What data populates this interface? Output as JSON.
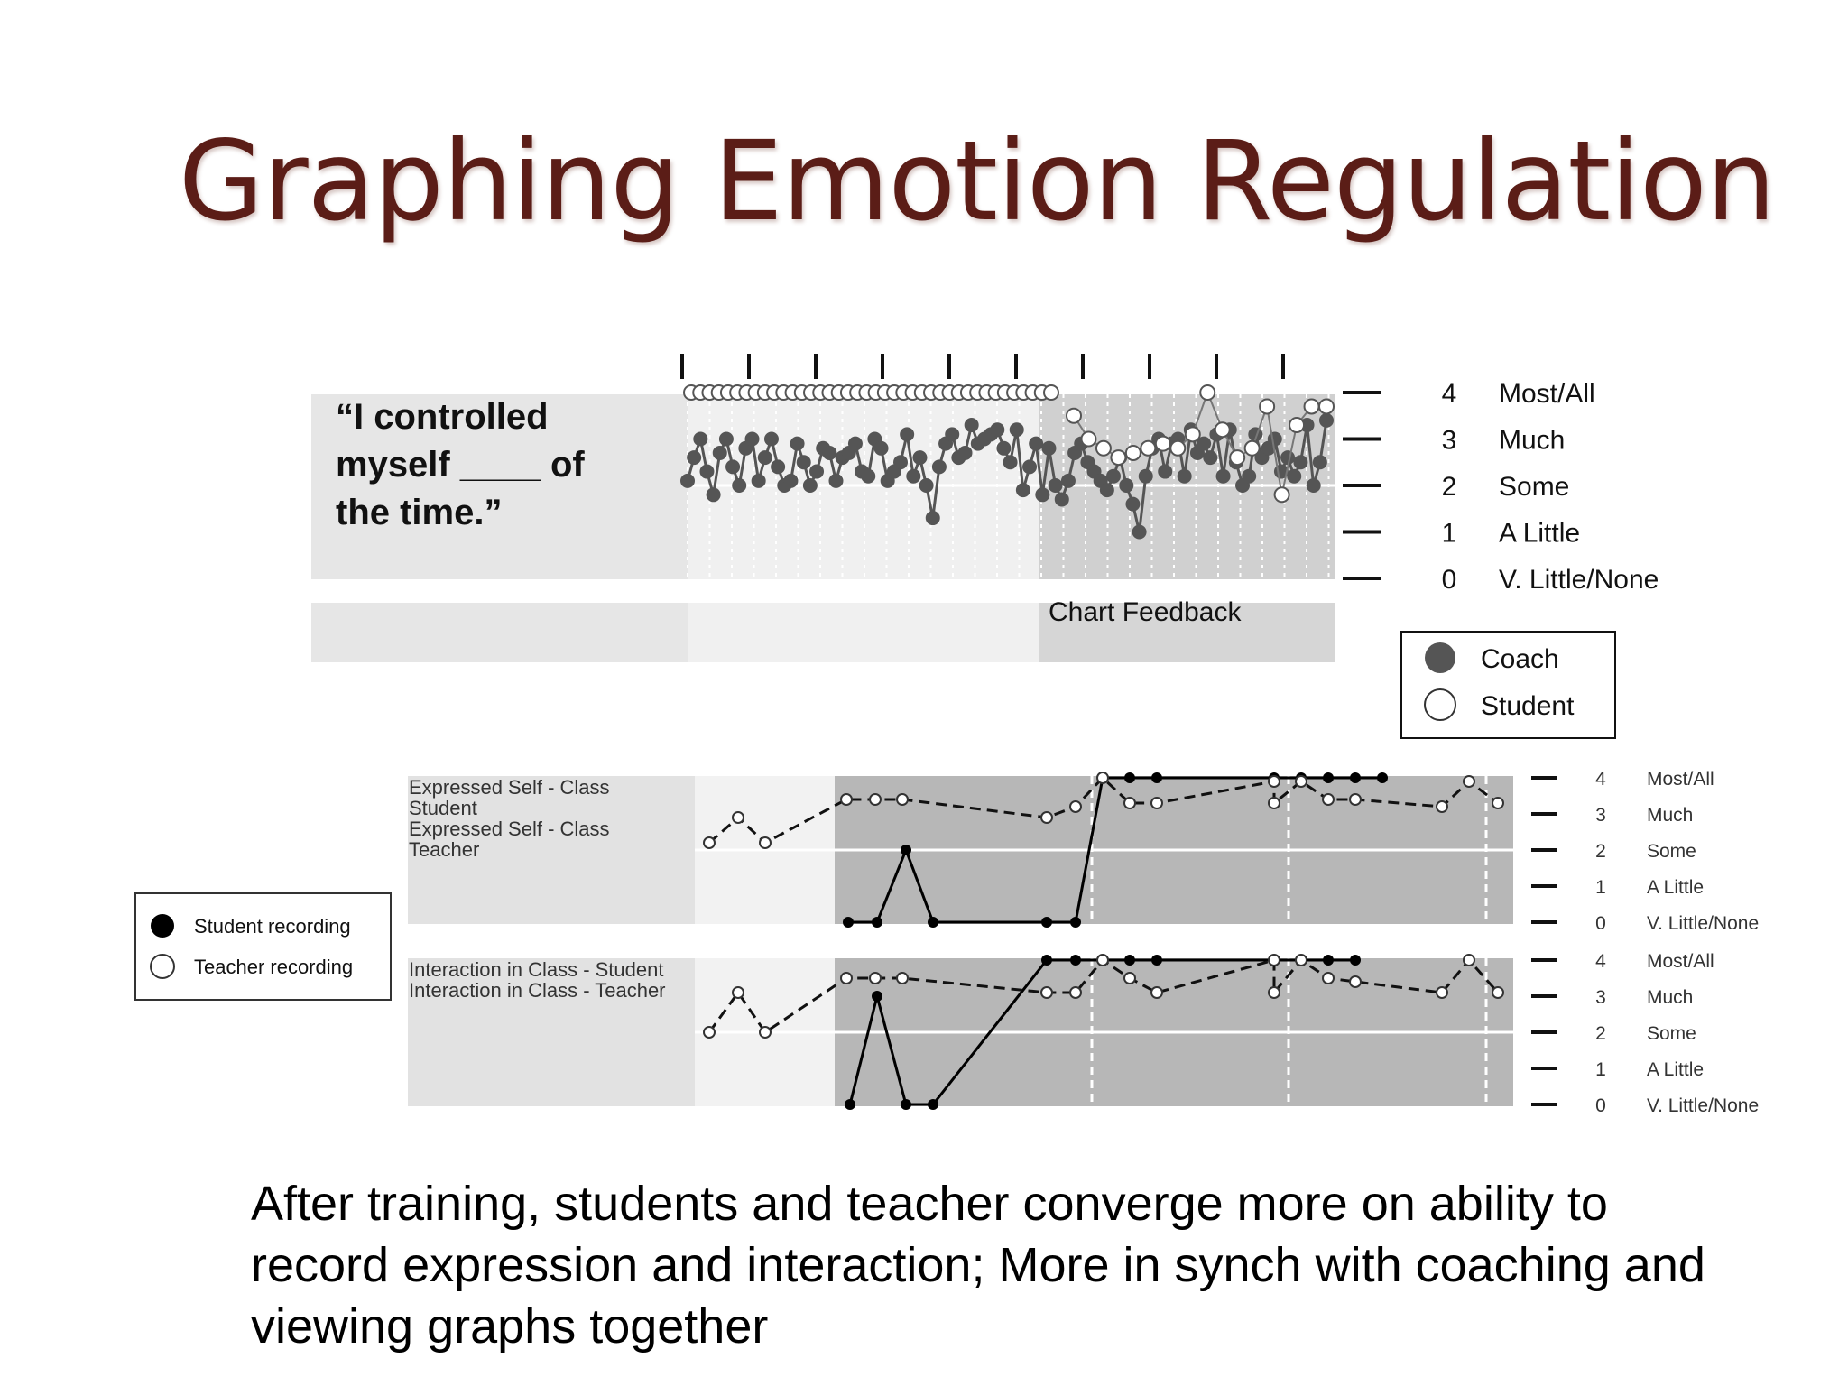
{
  "slide": {
    "title": "Graphing Emotion Regulation",
    "caption": "After training, students and teacher converge more on ability to record expression and interaction; More in synch with coaching and viewing graphs together"
  },
  "colors": {
    "title": "#5b1d17",
    "panel_light": "#e6e6e6",
    "panel_white": "#f4f4f4",
    "panel_dark": "#b7b7b7",
    "series_dark": "#555555"
  },
  "chart_data": [
    {
      "type": "line",
      "prompt": [
        "“I controlled",
        "myself ____ of",
        "the time.”"
      ],
      "phase_label": "Chart Feedback",
      "y_ticks": [
        {
          "value": 4,
          "label": "Most/All"
        },
        {
          "value": 3,
          "label": "Much"
        },
        {
          "value": 2,
          "label": "Some"
        },
        {
          "value": 1,
          "label": "A Little"
        },
        {
          "value": 0,
          "label": "V. Little/None"
        }
      ],
      "ylim": [
        0,
        4
      ],
      "legend": {
        "placement": "right",
        "entries": [
          "Coach",
          "Student"
        ]
      },
      "series": [
        {
          "name": "Coach",
          "values": [
            2.1,
            2.6,
            3.0,
            2.3,
            1.8,
            2.7,
            3.0,
            2.4,
            2.0,
            2.8,
            3.0,
            2.1,
            2.6,
            3.0,
            2.4,
            2.0,
            2.1,
            2.9,
            2.5,
            2.0,
            2.3,
            2.8,
            2.7,
            2.1,
            2.6,
            2.7,
            2.9,
            2.3,
            2.2,
            3.0,
            2.8,
            2.1,
            2.3,
            2.5,
            3.1,
            2.2,
            2.6,
            2.0,
            1.3,
            2.4,
            2.9,
            3.1,
            2.6,
            2.7,
            3.3,
            2.9,
            3.0,
            3.1,
            3.2,
            2.8,
            2.5,
            3.2,
            1.9,
            2.4,
            2.9,
            1.8,
            2.8,
            2.0,
            1.7,
            2.1,
            2.7,
            2.9,
            2.5,
            2.3,
            2.1,
            1.9,
            2.2,
            2.6,
            2.0,
            1.6,
            1.0,
            2.2,
            2.8,
            3.0,
            2.3,
            2.9,
            3.0,
            2.2,
            3.2,
            2.7,
            2.9,
            2.6,
            3.1,
            2.2,
            3.2,
            2.5,
            2.0,
            2.2,
            3.1,
            2.6,
            2.8,
            3.0,
            2.3,
            2.6,
            2.2,
            2.5,
            3.3,
            2.0,
            2.5,
            3.4
          ]
        },
        {
          "name": "Student",
          "values": [
            4,
            4,
            4,
            4,
            4,
            4,
            4,
            4,
            4,
            4,
            4,
            4,
            4,
            4,
            4,
            4,
            4,
            4,
            4,
            4,
            4,
            4,
            4,
            4,
            4,
            4,
            4,
            4,
            4,
            4,
            4,
            4,
            4,
            4,
            4,
            4,
            4,
            4,
            4,
            4,
            3.5,
            3.0,
            2.8,
            2.6,
            2.7,
            2.8,
            2.9,
            2.8,
            3.1,
            4.0,
            3.2,
            2.6,
            2.8,
            3.7,
            1.8,
            3.3,
            3.7,
            3.7
          ]
        }
      ]
    },
    {
      "type": "line",
      "rows": [
        {
          "labels": [
            "Expressed Self - Class",
            "Student",
            "Expressed Self - Class",
            "Teacher"
          ],
          "series": [
            {
              "name": "Student",
              "values": [
                2.2,
                2.9,
                2.2,
                3.4,
                3.4,
                3.4,
                2.9,
                3.2,
                4.0,
                3.3,
                3.3,
                3.9,
                3.3,
                3.9,
                3.4,
                3.4,
                3.2,
                3.9,
                3.3
              ]
            },
            {
              "name": "Teacher",
              "values": [
                0,
                0,
                2,
                0,
                0,
                0,
                4,
                4,
                4,
                4,
                4,
                4,
                4,
                4
              ]
            }
          ]
        },
        {
          "labels": [
            "Interaction in Class - Student",
            "Interaction in Class - Teacher"
          ],
          "series": [
            {
              "name": "Student",
              "values": [
                2.0,
                3.1,
                2.0,
                3.5,
                3.5,
                3.5,
                3.1,
                3.1,
                4.0,
                3.5,
                3.1,
                4.0,
                3.1,
                4.0,
                3.5,
                3.4,
                3.1,
                4.0,
                3.1
              ]
            },
            {
              "name": "Teacher",
              "values": [
                0,
                3,
                0,
                0,
                4,
                4,
                4,
                4,
                4,
                4,
                4,
                4,
                4
              ]
            }
          ]
        }
      ],
      "y_ticks": [
        {
          "value": 4,
          "label": "Most/All"
        },
        {
          "value": 3,
          "label": "Much"
        },
        {
          "value": 2,
          "label": "Some"
        },
        {
          "value": 1,
          "label": "A Little"
        },
        {
          "value": 0,
          "label": "V. Little/None"
        }
      ],
      "ylim": [
        0,
        4
      ],
      "legend": {
        "placement": "left",
        "entries": [
          "Student recording",
          "Teacher recording"
        ]
      }
    }
  ]
}
